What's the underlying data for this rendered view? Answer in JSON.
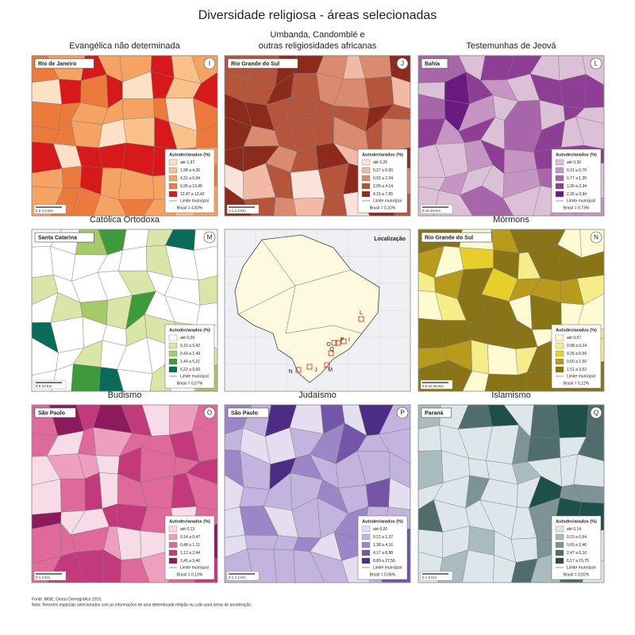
{
  "title": "Diversidade religiosa - áreas selecionadas",
  "panels": [
    {
      "title": [
        "Evangélica não determinada"
      ],
      "region": "Rio de Janeiro",
      "letter": "I",
      "legend_title": "Autodeclarados (%)",
      "legend": [
        {
          "label": "até 1,97",
          "color": "#fde0c5"
        },
        {
          "label": "1,98 a 4,30",
          "color": "#f9c08a"
        },
        {
          "label": "4,31 a 6,94",
          "color": "#f5a263"
        },
        {
          "label": "6,95 a 10,46",
          "color": "#ec7a3c"
        },
        {
          "label": "10,47 a 13,42",
          "color": "#d7191c"
        }
      ],
      "boundary_label": "Limite municipal",
      "national": "Brasil = 4,83%",
      "scale": "0  2  4  6 Km"
    },
    {
      "title": [
        "Umbanda, Candomblé e",
        "outras religiosidades africanas"
      ],
      "region": "Rio Grande do Sul",
      "letter": "J",
      "legend_title": "Autodeclarados (%)",
      "legend": [
        {
          "label": "até 0,26",
          "color": "#fbe3dc"
        },
        {
          "label": "0,27 a 0,90",
          "color": "#f1b9a6"
        },
        {
          "label": "0,91 a 2,04",
          "color": "#d98a6f"
        },
        {
          "label": "2,05 a 4,14",
          "color": "#b5553c"
        },
        {
          "label": "4,15 a 7,95",
          "color": "#8c2a1c"
        }
      ],
      "boundary_label": "Limite municipal",
      "national": "Brasil = 0,32%",
      "scale": "0  1  2  3 Km"
    },
    {
      "title": [
        "Testemunhas de Jeová"
      ],
      "region": "Bahia",
      "letter": "L",
      "legend_title": "Autodeclarados (%)",
      "legend": [
        {
          "label": "até 0,30",
          "color": "#dcc0d8"
        },
        {
          "label": "0,31 a 0,76",
          "color": "#c795c4"
        },
        {
          "label": "0,77 a 1,35",
          "color": "#a965aa"
        },
        {
          "label": "1,36 a 2,34",
          "color": "#8e3f95"
        },
        {
          "label": "2,35 a 3,94",
          "color": "#6a1b7f"
        }
      ],
      "boundary_label": "Limite municipal",
      "national": "Brasil = 0,73%",
      "scale": "0  10  20 Km"
    },
    {
      "title": [
        "Católica Ortodoxa"
      ],
      "region": "Santa Catarina",
      "letter": "M",
      "legend_title": "Autodeclarados (%)",
      "legend": [
        {
          "label": "até 0,09",
          "color": "#ffffff"
        },
        {
          "label": "0,10 a 0,42",
          "color": "#d9e6a8"
        },
        {
          "label": "0,43 a 1,43",
          "color": "#a6c96a"
        },
        {
          "label": "1,44 a 5,21",
          "color": "#3f9a3c"
        },
        {
          "label": "5,22 a 9,69",
          "color": "#0b6b5a"
        }
      ],
      "boundary_label": "Limite municipal",
      "national": "Brasil = 0,07%",
      "scale": "0  5  10 Km"
    },
    {
      "title": [
        "Mórmons"
      ],
      "region": "Rio Grande do Sul",
      "letter": "N",
      "legend_title": "Autodeclarados (%)",
      "legend": [
        {
          "label": "até 0,07",
          "color": "#fefbd2"
        },
        {
          "label": "0,08 a 0,24",
          "color": "#f7ec8a"
        },
        {
          "label": "0,25 a 0,59",
          "color": "#e6cf2c"
        },
        {
          "label": "0,60 a 1,50",
          "color": "#b89a1c"
        },
        {
          "label": "1,51 a 3,52",
          "color": "#8a7418"
        }
      ],
      "boundary_label": "Limite municipal",
      "national": "Brasil = 0,12%",
      "scale": "0  5  10  25 Km"
    },
    {
      "title": [
        "Budismo"
      ],
      "region": "São Paulo",
      "letter": "O",
      "legend_title": "Autodeclarados (%)",
      "legend": [
        {
          "label": "até 0,13",
          "color": "#f7dbe6"
        },
        {
          "label": "0,14 a 0,47",
          "color": "#ee9fc0"
        },
        {
          "label": "0,48 a 1,11",
          "color": "#e0699b"
        },
        {
          "label": "1,12 a 2,44",
          "color": "#c23a7c"
        },
        {
          "label": "2,45 a 3,40",
          "color": "#8c1a5c"
        }
      ],
      "boundary_label": "Limite municipal",
      "national": "Brasil = 0,13%",
      "scale": "0  1  2 Km"
    },
    {
      "title": [
        "Judaísmo"
      ],
      "region": "São Paulo",
      "letter": "P",
      "legend_title": "Autodeclarados (%)",
      "legend": [
        {
          "label": "até 0,20",
          "color": "#e5def0"
        },
        {
          "label": "0,21 a 1,37",
          "color": "#c2b4de"
        },
        {
          "label": "1,38 a 4,16",
          "color": "#9d86c7"
        },
        {
          "label": "4,17 a 8,88",
          "color": "#7456a8"
        },
        {
          "label": "8,89 a 27,56",
          "color": "#4c2c84"
        }
      ],
      "boundary_label": "Limite municipal",
      "national": "Brasil = 0,06%",
      "scale": "0  1  2  4 Km"
    },
    {
      "title": [
        "Islamismo"
      ],
      "region": "Paraná",
      "letter": "Q",
      "legend_title": "Autodeclarados (%)",
      "legend": [
        {
          "label": "até 0,14",
          "color": "#dde6ea"
        },
        {
          "label": "0,15 a 0,64",
          "color": "#aabbbf"
        },
        {
          "label": "0,65 a 2,46",
          "color": "#7d9397"
        },
        {
          "label": "2,47 a 6,16",
          "color": "#4f6d6c"
        },
        {
          "label": "6,17 a 15,75",
          "color": "#1e4f4a"
        }
      ],
      "boundary_label": "Limite municipal",
      "national": "Brasil = 0,02%",
      "scale": "0  1  2 Km"
    }
  ],
  "location": {
    "title": "Localização",
    "markers": [
      "I",
      "J",
      "L",
      "M",
      "N",
      "O",
      "P",
      "Q"
    ]
  },
  "footer": {
    "source": "Fonte: IBGE, Censo Demográfico 2010.",
    "note": "Nota: Recortes espaciais selecionados com as informações de uma determinada religião ou culto para áreas de ponderação."
  }
}
